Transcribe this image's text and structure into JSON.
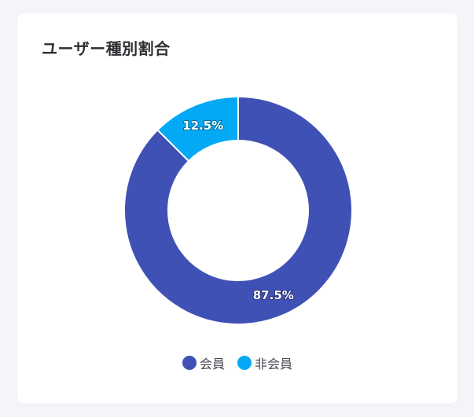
{
  "card": {
    "title": "ユーザー種別割合"
  },
  "chart_data": {
    "type": "pie",
    "variant": "donut",
    "title": "ユーザー種別割合",
    "categories": [
      "会員",
      "非会員"
    ],
    "values": [
      87.5,
      12.5
    ],
    "labels": [
      "87.5%",
      "12.5%"
    ],
    "colors": [
      "#3f51b5",
      "#03a9f4"
    ],
    "legend_position": "bottom"
  }
}
